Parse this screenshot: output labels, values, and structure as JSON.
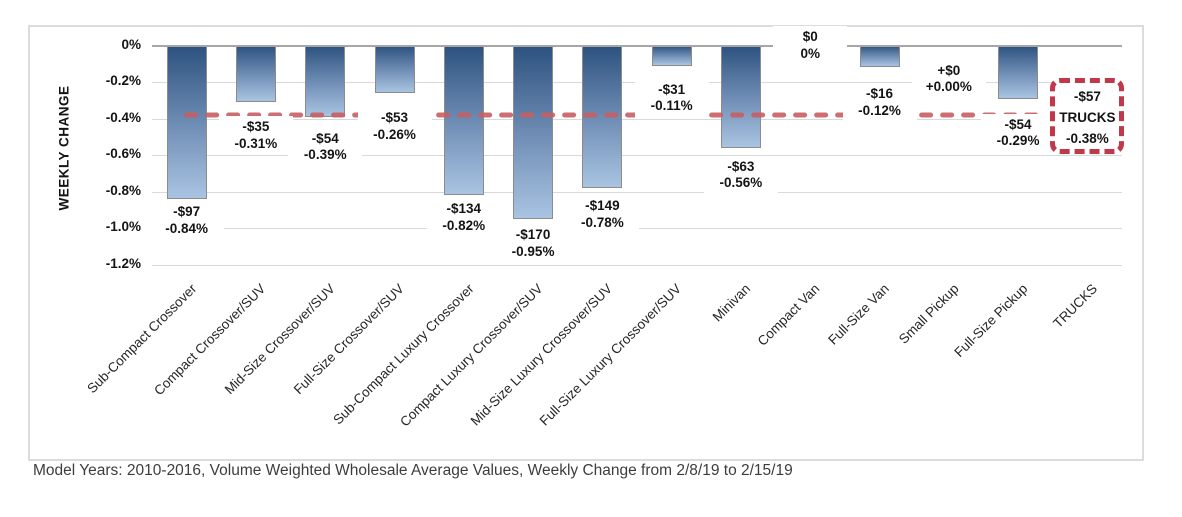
{
  "chart_data": {
    "type": "bar",
    "title": "",
    "ylabel": "WEEKLY CHANGE",
    "footnote": "Model Years: 2010-2016, Volume Weighted Wholesale Average Values, Weekly Change from 2/8/19 to 2/15/19",
    "y_axis": {
      "ticks": [
        "0%",
        "-0.2%",
        "-0.4%",
        "-0.6%",
        "-0.8%",
        "-1.0%",
        "-1.2%"
      ],
      "min": -1.2,
      "max": 0,
      "grid": true
    },
    "points": [
      {
        "category": "Sub-Compact Crossover",
        "dollar": "-$97",
        "pct": "-0.84%",
        "value": -0.84,
        "label_dy": 5
      },
      {
        "category": "Compact Crossover/SUV",
        "dollar": "-$35",
        "pct": "-0.31%",
        "value": -0.31,
        "label_dy": 17
      },
      {
        "category": "Mid-Size Crossover/SUV",
        "dollar": "-$54",
        "pct": "-0.39%",
        "value": -0.39,
        "label_dy": 14
      },
      {
        "category": "Full-Size Crossover/SUV",
        "dollar": "-$53",
        "pct": "-0.26%",
        "value": -0.26,
        "label_dy": 17
      },
      {
        "category": "Sub-Compact Luxury Crossover",
        "dollar": "-$134",
        "pct": "-0.82%",
        "value": -0.82,
        "label_dy": 6
      },
      {
        "category": "Compact Luxury Crossover/SUV",
        "dollar": "-$170",
        "pct": "-0.95%",
        "value": -0.95,
        "label_dy": 8
      },
      {
        "category": "Mid-Size Luxury Crossover/SUV",
        "dollar": "-$149",
        "pct": "-0.78%",
        "value": -0.78,
        "label_dy": 10
      },
      {
        "category": "Full-Size Luxury Crossover/SUV",
        "dollar": "-$31",
        "pct": "-0.11%",
        "value": -0.11,
        "label_dy": 16
      },
      {
        "category": "Minivan",
        "dollar": "-$63",
        "pct": "-0.56%",
        "value": -0.56,
        "label_dy": 11
      },
      {
        "category": "Compact Van",
        "dollar": "$0",
        "pct": "0%",
        "value": 0,
        "label_mode": "axis"
      },
      {
        "category": "Full-Size Van",
        "dollar": "-$16",
        "pct": "-0.12%",
        "value": -0.12,
        "label_dy": 19
      },
      {
        "category": "Small Pickup",
        "dollar": "+$0",
        "pct": "+0.00%",
        "value": 0,
        "label_dy": 17
      },
      {
        "category": "Full-Size Pickup",
        "dollar": "-$54",
        "pct": "-0.29%",
        "value": -0.29,
        "label_dy": 18
      },
      {
        "category": "TRUCKS",
        "dollar": "-$57",
        "pct": "-0.38%",
        "value": null,
        "label_mode": "callout"
      }
    ],
    "reference_line": {
      "value": -0.38,
      "label": "TRUCKS",
      "color": "#c75f63",
      "style": "dashed"
    },
    "callout": {
      "lines": [
        "-$57",
        "TRUCKS",
        "-0.38%"
      ],
      "border_color": "#c0394a"
    },
    "colors": {
      "bar_top": "#2d527f",
      "bar_bottom": "#a9c4e2",
      "bar_border": "#8c8c8c",
      "grid": "#d9d9d9",
      "axis": "#a6a6a6",
      "reference": "#c75f63",
      "callout_border": "#c0394a"
    }
  }
}
